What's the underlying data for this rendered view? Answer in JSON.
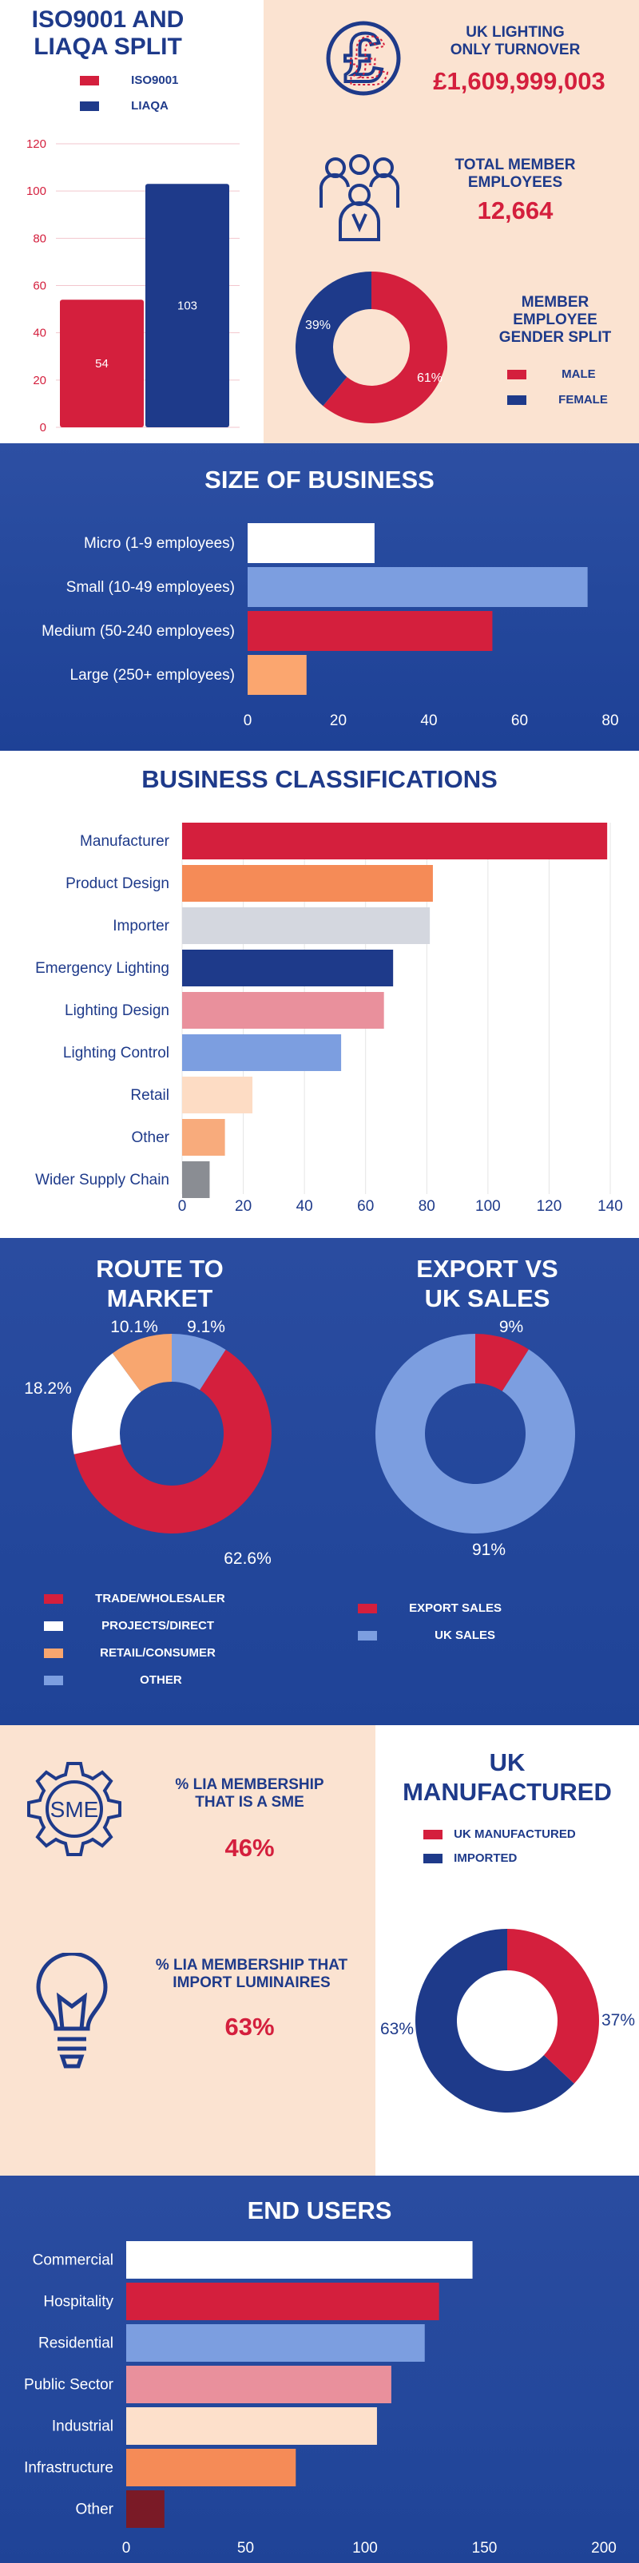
{
  "colors": {
    "red": "#d41f3d",
    "navy": "#1e3a8a",
    "blue_bg": "#23469b",
    "light_blue": "#7c9ee0",
    "orange": "#f58b57",
    "peach": "#fbe3d1",
    "white": "#ffffff",
    "light_grey": "#d4d7df",
    "pink": "#e9909c",
    "light_peach": "#fddcc4",
    "grey": "#8a8d93",
    "maroon": "#7a1a26"
  },
  "icons": {
    "turnover": "pound-icon",
    "employees": "people-group-icon",
    "sme": "sme-gear-icon",
    "import": "lightbulb-icon"
  },
  "stats": {
    "turnover_label": "UK LIGHTING ONLY TURNOVER",
    "turnover_value": "£1,609,999,003",
    "employees_label": "TOTAL MEMBER EMPLOYEES",
    "employees_value": "12,664",
    "gender_label": "MEMBER EMPLOYEE GENDER SPLIT",
    "sme_label": "% LIA MEMBERSHIP THAT IS A SME",
    "sme_value": "46%",
    "import_label": "% LIA MEMBERSHIP THAT IMPORT LUMINAIRES",
    "import_value": "63%"
  },
  "chart_data": [
    {
      "id": "iso",
      "type": "bar",
      "title": "ISO9001 AND LIAQA SPLIT",
      "series": [
        {
          "name": "ISO9001",
          "values": [
            54
          ],
          "color": "#d41f3d"
        },
        {
          "name": "LIAQA",
          "values": [
            103
          ],
          "color": "#1e3a8a"
        }
      ],
      "ylim": [
        0,
        120
      ],
      "yticks": [
        "0",
        "20",
        "40",
        "60",
        "80",
        "100",
        "120"
      ],
      "data_labels": [
        "54",
        "103"
      ],
      "grid": true
    },
    {
      "id": "gender",
      "type": "pie",
      "title": "MEMBER EMPLOYEE GENDER SPLIT",
      "labels": [
        "MALE",
        "FEMALE"
      ],
      "values": [
        61,
        39
      ],
      "data_labels": [
        "61%",
        "39%"
      ],
      "colors": [
        "#d41f3d",
        "#1e3a8a"
      ]
    },
    {
      "id": "size",
      "type": "bar",
      "title": "SIZE OF BUSINESS",
      "categories": [
        "Micro (1-9 employees)",
        "Small (10-49 employees)",
        "Medium (50-240 employees)",
        "Large (250+ employees)"
      ],
      "values": [
        28,
        75,
        54,
        13
      ],
      "colors": [
        "#ffffff",
        "#7c9ee0",
        "#d41f3d",
        "#fba66f"
      ],
      "xlim": [
        0,
        80
      ],
      "xticks": [
        "0",
        "20",
        "40",
        "60",
        "80"
      ]
    },
    {
      "id": "class",
      "type": "bar",
      "title": "BUSINESS CLASSIFICATIONS",
      "categories": [
        "Manufacturer",
        "Product Design",
        "Importer",
        "Emergency Lighting",
        "Lighting Design",
        "Lighting Control",
        "Retail",
        "Other",
        "Wider Supply Chain"
      ],
      "values": [
        139,
        82,
        81,
        69,
        66,
        52,
        23,
        14,
        9
      ],
      "colors": [
        "#d41f3d",
        "#f58b57",
        "#d4d7df",
        "#1e3a8a",
        "#e9909c",
        "#7c9ee0",
        "#fddcc4",
        "#f8ab7c",
        "#8a8d93"
      ],
      "xlim": [
        0,
        140
      ],
      "xticks": [
        "0",
        "20",
        "40",
        "60",
        "80",
        "100",
        "120",
        "140"
      ],
      "grid": true
    },
    {
      "id": "route",
      "type": "pie",
      "title": "ROUTE TO MARKET",
      "labels": [
        "TRADE/WHOLESALER",
        "PROJECTS/DIRECT",
        "RETAIL/CONSUMER",
        "OTHER"
      ],
      "values": [
        62.6,
        18.2,
        10.1,
        9.1
      ],
      "data_labels": [
        "62.6%",
        "18.2%",
        "10.1%",
        "9.1%"
      ],
      "colors": [
        "#d41f3d",
        "#ffffff",
        "#f8a66f",
        "#7c9ee0"
      ]
    },
    {
      "id": "export",
      "type": "pie",
      "title": "EXPORT VS UK SALES",
      "labels": [
        "EXPORT SALES",
        "UK SALES"
      ],
      "values": [
        9,
        91
      ],
      "data_labels": [
        "9%",
        "91%"
      ],
      "colors": [
        "#d41f3d",
        "#7c9ee0"
      ]
    },
    {
      "id": "ukman",
      "type": "pie",
      "title": "UK MANUFACTURED",
      "labels": [
        "UK MANUFACTURED",
        "IMPORTED"
      ],
      "values": [
        37,
        63
      ],
      "data_labels": [
        "37%",
        "63%"
      ],
      "colors": [
        "#d41f3d",
        "#1e3a8a"
      ]
    },
    {
      "id": "users",
      "type": "bar",
      "title": "END USERS",
      "categories": [
        "Commercial",
        "Hospitality",
        "Residential",
        "Public Sector",
        "Industrial",
        "Infrastructure",
        "Other"
      ],
      "values": [
        145,
        131,
        125,
        111,
        105,
        71,
        16
      ],
      "colors": [
        "#ffffff",
        "#d41f3d",
        "#7c9ee0",
        "#e9909c",
        "#fde0cb",
        "#f58b57",
        "#7a1a26"
      ],
      "xlim": [
        0,
        200
      ],
      "xticks": [
        "0",
        "50",
        "100",
        "150",
        "200"
      ]
    }
  ]
}
